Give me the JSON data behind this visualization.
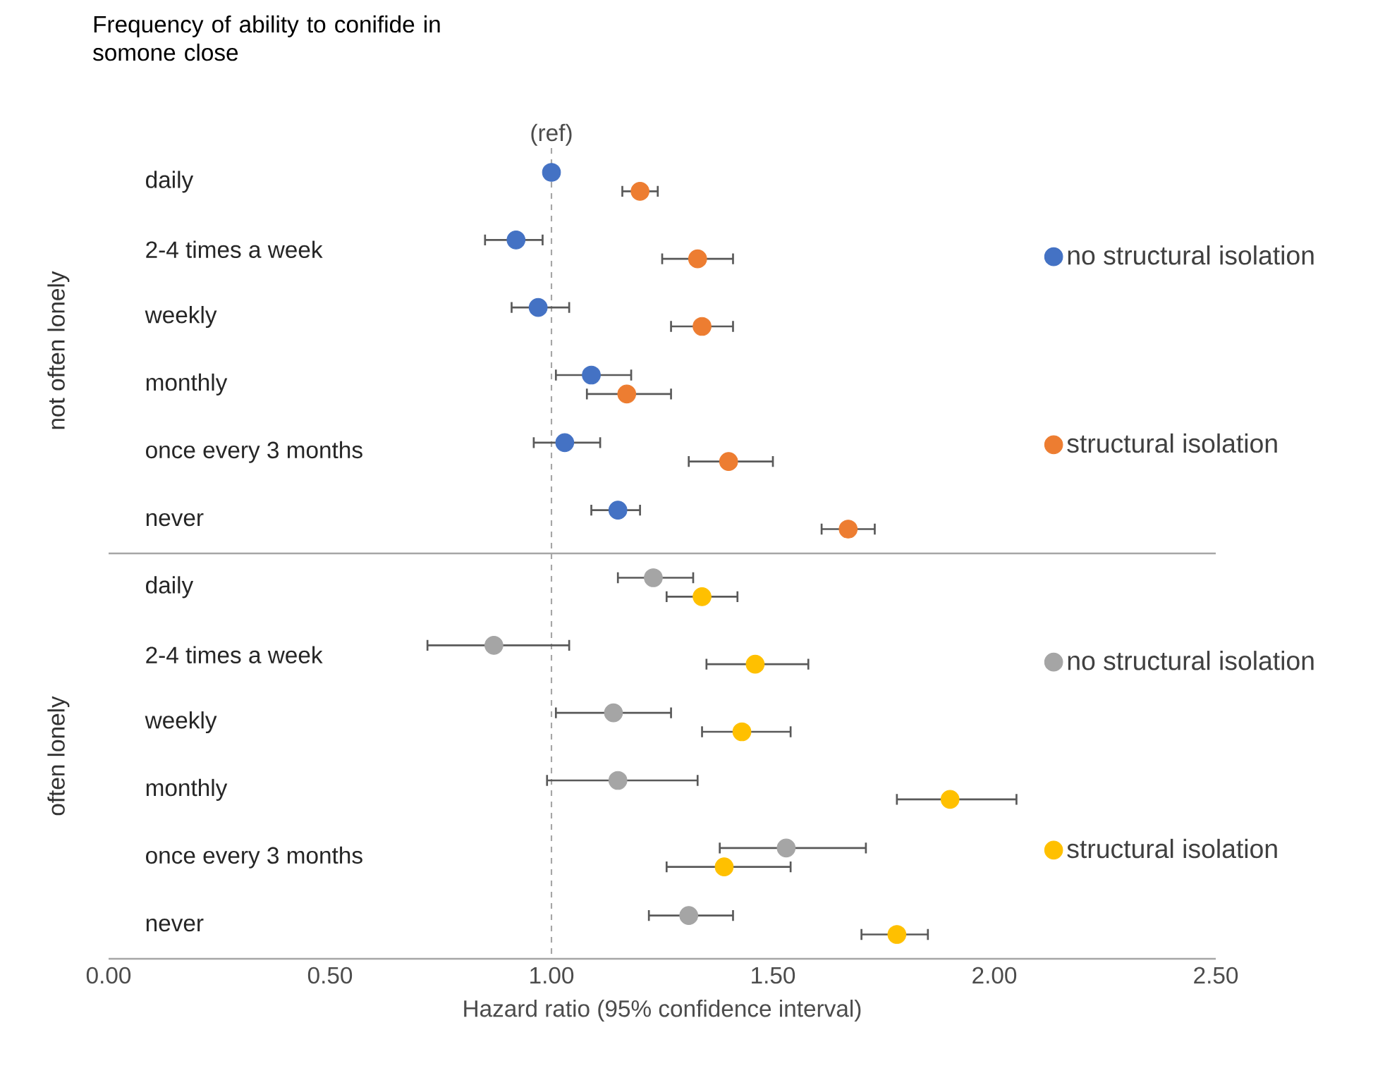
{
  "chart_data": [
    {
      "type": "scatter",
      "orientation": "horizontal",
      "title": "Frequency of ability to conifide in somone close",
      "ylabel": "not often lonely",
      "categories": [
        "daily",
        "2-4 times a week",
        "weekly",
        "monthly",
        "once every 3 months",
        "never"
      ],
      "series": [
        {
          "name": "no structural isolation",
          "color": "#4472c4",
          "values": [
            1.0,
            0.92,
            0.97,
            1.09,
            1.03,
            1.15
          ],
          "errors": [
            null,
            [
              0.85,
              0.98
            ],
            [
              0.91,
              1.04
            ],
            [
              1.01,
              1.18
            ],
            [
              0.96,
              1.11
            ],
            [
              1.09,
              1.2
            ]
          ]
        },
        {
          "name": "structural isolation",
          "color": "#ed7d31",
          "values": [
            1.2,
            1.33,
            1.34,
            1.17,
            1.4,
            1.67
          ],
          "errors": [
            [
              1.16,
              1.24
            ],
            [
              1.25,
              1.41
            ],
            [
              1.27,
              1.41
            ],
            [
              1.08,
              1.27
            ],
            [
              1.31,
              1.5
            ],
            [
              1.61,
              1.73
            ]
          ]
        }
      ],
      "xlim": [
        0,
        2.5
      ],
      "tick_labels": "y",
      "legend": "right",
      "ref_lines": [
        {
          "axis": "x",
          "value": 1,
          "color": "#a6a6a6",
          "line_style": "dashed"
        }
      ],
      "annotations": [
        "(ref)"
      ]
    },
    {
      "type": "scatter",
      "orientation": "horizontal",
      "ylabel": "often lonely",
      "xlabel": "Hazard ratio (95% confidence interval)",
      "categories": [
        "daily",
        "2-4 times a week",
        "weekly",
        "monthly",
        "once every 3 months",
        "never"
      ],
      "series": [
        {
          "name": "no structural isolation",
          "color": "#a5a5a5",
          "values": [
            1.23,
            0.87,
            1.14,
            1.15,
            1.53,
            1.31
          ],
          "errors": [
            [
              1.15,
              1.32
            ],
            [
              0.72,
              1.04
            ],
            [
              1.01,
              1.27
            ],
            [
              0.99,
              1.33
            ],
            [
              1.38,
              1.71
            ],
            [
              1.22,
              1.41
            ]
          ]
        },
        {
          "name": "structural isolation",
          "color": "#ffc000",
          "values": [
            1.34,
            1.46,
            1.43,
            1.9,
            1.39,
            1.78
          ],
          "errors": [
            [
              1.26,
              1.42
            ],
            [
              1.35,
              1.58
            ],
            [
              1.34,
              1.54
            ],
            [
              1.78,
              2.05
            ],
            [
              1.26,
              1.54
            ],
            [
              1.7,
              1.85
            ]
          ]
        }
      ],
      "xlim": [
        0,
        2.5
      ],
      "xticks": [
        {
          "value": 0,
          "label": "0.00"
        },
        {
          "value": 0.5,
          "label": "0.50"
        },
        {
          "value": 1,
          "label": "1.00"
        },
        {
          "value": 1.5,
          "label": "1.50"
        },
        {
          "value": 2,
          "label": "2.00"
        },
        {
          "value": 2.5,
          "label": "2.50"
        }
      ],
      "legend": "right",
      "ref_lines": [
        {
          "axis": "x",
          "value": 1,
          "color": "#a6a6a6",
          "line_style": "dashed"
        }
      ]
    }
  ]
}
